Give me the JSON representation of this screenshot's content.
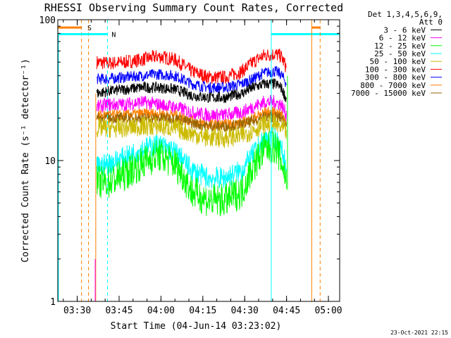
{
  "chart_data": {
    "type": "line",
    "title": "RHESSI Observing Summary Count Rates, Corrected",
    "xlabel": "Start Time (04-Jun-14 03:23:02)",
    "ylabel": "Corrected Count Rate (s⁻¹ detector⁻¹)",
    "y_scale": "log",
    "ylim": [
      1,
      100
    ],
    "xlim_minutes_after_0323": [
      0,
      101
    ],
    "x_ticks": [
      "03:30",
      "03:45",
      "04:00",
      "04:15",
      "04:30",
      "04:45",
      "05:00"
    ],
    "x_tick_minutes": [
      6.97,
      21.97,
      36.97,
      51.97,
      66.97,
      81.97,
      96.97
    ],
    "y_ticks": [
      "1",
      "10",
      "100"
    ],
    "legend_header": [
      "Det 1,3,4,5,6,9,",
      "Att 0"
    ],
    "legend_position": "right, outside plot",
    "series": [
      {
        "name": "3 - 6 keV",
        "color": "#000000",
        "x": [
          14,
          18,
          24,
          30,
          36,
          42,
          48,
          54,
          60,
          66,
          70,
          74,
          78,
          80,
          82
        ],
        "values": [
          30,
          31,
          32,
          33,
          33,
          32,
          29,
          28,
          28,
          30,
          33,
          35,
          35,
          33,
          27
        ]
      },
      {
        "name": "6 - 12 keV",
        "color": "#ff00ff",
        "x": [
          14,
          18,
          24,
          30,
          36,
          42,
          48,
          54,
          60,
          66,
          70,
          74,
          78,
          80,
          82
        ],
        "values": [
          24,
          25,
          25,
          26,
          25,
          24,
          22,
          21,
          21,
          22,
          24,
          26,
          26,
          25,
          21
        ]
      },
      {
        "name": "12 - 25 keV",
        "color": "#00ff00",
        "x": [
          14,
          18,
          24,
          30,
          36,
          42,
          48,
          54,
          60,
          66,
          70,
          74,
          78,
          80,
          82
        ],
        "values": [
          7,
          7,
          8,
          9.5,
          11,
          9.5,
          6,
          5.2,
          5.2,
          6,
          9,
          12,
          12.5,
          10,
          7
        ]
      },
      {
        "name": "25 - 50 keV",
        "color": "#00ffff",
        "x": [
          14,
          18,
          24,
          30,
          36,
          42,
          48,
          54,
          60,
          66,
          70,
          74,
          78,
          80,
          82
        ],
        "values": [
          9,
          9.5,
          10.5,
          12,
          13,
          11.5,
          8.5,
          7.5,
          7.5,
          8.5,
          11,
          14,
          14.5,
          12,
          9
        ]
      },
      {
        "name": "50 - 100 keV",
        "color": "#ccbb00",
        "x": [
          14,
          18,
          24,
          30,
          36,
          42,
          48,
          54,
          60,
          66,
          70,
          74,
          78,
          80,
          82
        ],
        "values": [
          17,
          17,
          17,
          17.5,
          17.5,
          17,
          15.5,
          14.5,
          14.5,
          15,
          16.5,
          18,
          18,
          17,
          16
        ]
      },
      {
        "name": "100 - 300 keV",
        "color": "#ff0000",
        "x": [
          14,
          18,
          24,
          30,
          36,
          42,
          48,
          54,
          60,
          66,
          70,
          74,
          78,
          80,
          82
        ],
        "values": [
          50,
          49,
          50,
          52,
          55,
          52,
          43,
          39,
          39,
          43,
          50,
          56,
          57,
          55,
          45
        ]
      },
      {
        "name": "300 - 800 keV",
        "color": "#0000ff",
        "x": [
          14,
          18,
          24,
          30,
          36,
          42,
          48,
          54,
          60,
          66,
          70,
          74,
          78,
          80,
          82
        ],
        "values": [
          38,
          38,
          39,
          40,
          41,
          40,
          35,
          33,
          33,
          35,
          38,
          42,
          43,
          41,
          35
        ]
      },
      {
        "name": "800 - 7000 keV",
        "color": "#ff8000",
        "x": [
          14,
          18,
          24,
          30,
          36,
          42,
          48,
          54,
          60,
          66,
          70,
          74,
          78,
          80,
          82
        ],
        "values": [
          21,
          21,
          21,
          21.5,
          21.5,
          21,
          19,
          18,
          18,
          18.5,
          20,
          22,
          22,
          21,
          19
        ]
      },
      {
        "name": "7000 - 15000 keV",
        "color": "#996600",
        "x": [
          14,
          18,
          24,
          30,
          36,
          42,
          48,
          54,
          60,
          66,
          70,
          74,
          78,
          80,
          82
        ],
        "values": [
          20,
          20,
          20,
          20,
          20,
          20,
          18.5,
          17.5,
          17.5,
          18,
          19,
          20.5,
          20.5,
          20,
          18
        ]
      }
    ],
    "annotations": [
      {
        "text": "S",
        "color": "#ff8000"
      },
      {
        "text": "N",
        "color": "#00ffff"
      }
    ],
    "timestamp": "23-Oct-2021 22:15"
  }
}
